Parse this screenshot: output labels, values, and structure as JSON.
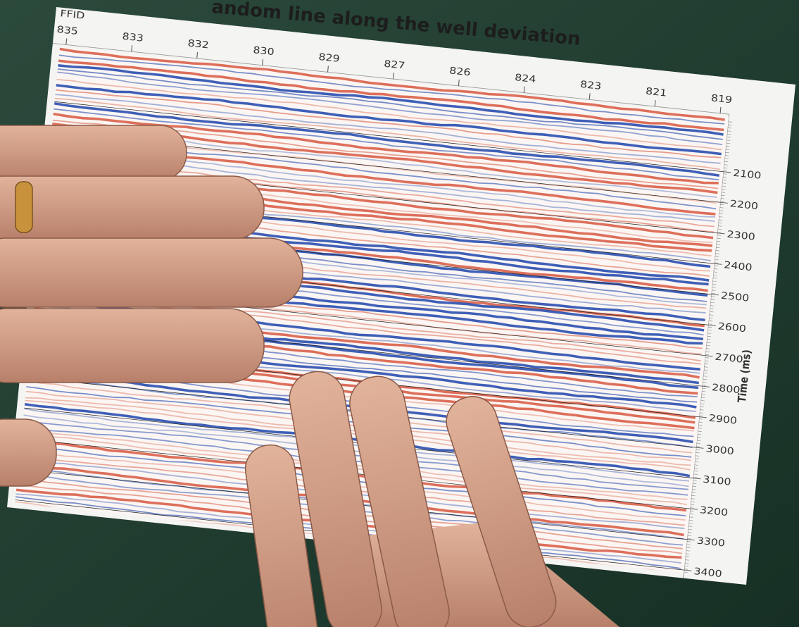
{
  "title": "andom line along the well deviation",
  "top_axis": {
    "label": "FFID",
    "ticks": [
      835,
      833,
      832,
      830,
      829,
      827,
      826,
      824,
      823,
      821,
      819
    ]
  },
  "right_axis": {
    "label": "Time (ms)",
    "ticks": [
      2100,
      2200,
      2300,
      2400,
      2500,
      2600,
      2700,
      2800,
      2900,
      3000,
      3100,
      3200,
      3300,
      3400
    ]
  }
}
